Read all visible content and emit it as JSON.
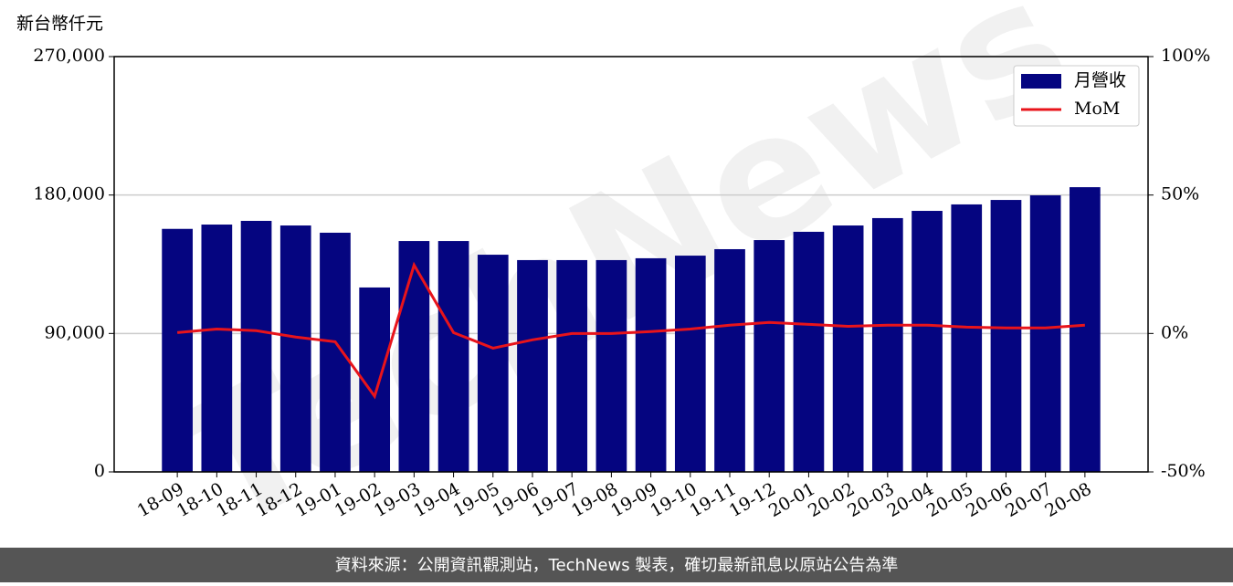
{
  "chart_data": {
    "type": "bar_line",
    "y_axis_label": "新台幣仟元",
    "categories": [
      "18-09",
      "18-10",
      "18-11",
      "18-12",
      "19-01",
      "19-02",
      "19-03",
      "19-04",
      "19-05",
      "19-06",
      "19-07",
      "19-08",
      "19-09",
      "19-10",
      "19-11",
      "19-12",
      "20-01",
      "20-02",
      "20-03",
      "20-04",
      "20-05",
      "20-06",
      "20-07",
      "20-08"
    ],
    "series": [
      {
        "name": "月營收",
        "color": "#050580",
        "values": [
          158000,
          160800,
          163200,
          160200,
          155500,
          119900,
          150100,
          150100,
          141200,
          137700,
          137700,
          137700,
          138900,
          140600,
          144800,
          150700,
          156100,
          160200,
          165000,
          169700,
          173900,
          176800,
          179800,
          185100
        ]
      },
      {
        "name": "MoM",
        "color": "#e8141b",
        "axis": "y2",
        "values": [
          0.3,
          1.6,
          1,
          -1.3,
          -3,
          -22.7,
          24.7,
          0.3,
          -5.3,
          -2.3,
          0,
          0,
          0.7,
          1.6,
          3,
          4,
          3.3,
          2.6,
          3,
          3,
          2.3,
          2,
          2,
          3
        ]
      }
    ],
    "ylim": [
      0,
      270000
    ],
    "yticks": [
      {
        "value": 0,
        "label": "0"
      },
      {
        "value": 90000,
        "label": "90,000"
      },
      {
        "value": 180000,
        "label": "180,000"
      },
      {
        "value": 270000,
        "label": "270,000"
      }
    ],
    "y2lim": [
      -50,
      100
    ],
    "y2ticks": [
      {
        "value": -50,
        "label": "-50%"
      },
      {
        "value": 0,
        "label": "0%"
      },
      {
        "value": 50,
        "label": "50%"
      },
      {
        "value": 100,
        "label": "100%"
      }
    ],
    "grid": true,
    "legend": "upper right",
    "watermark": "TechNews",
    "footer": "資料來源：公開資訊觀測站，TechNews 製表，確切最新訊息以原站公告為準"
  }
}
